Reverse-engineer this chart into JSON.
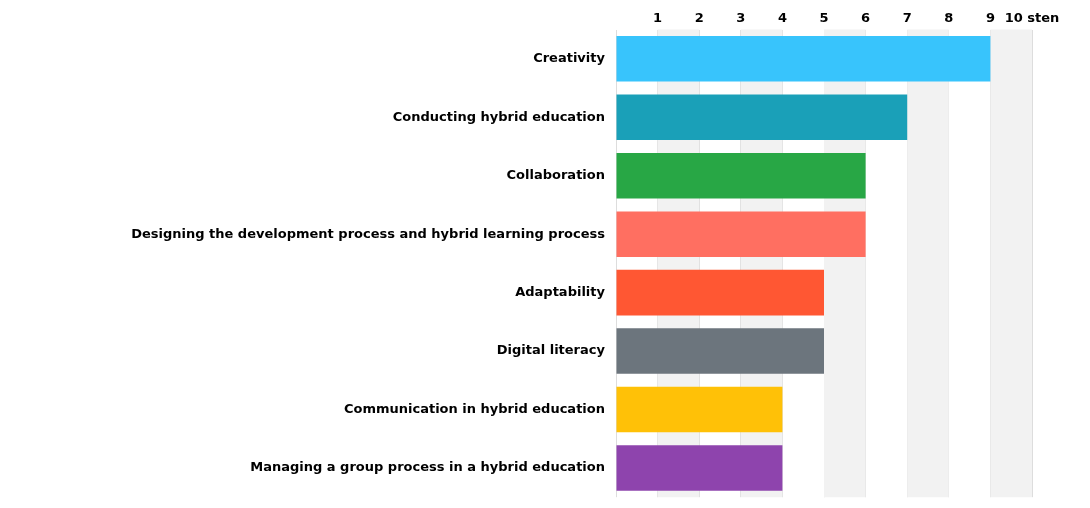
{
  "chart_data": {
    "type": "bar",
    "orientation": "horizontal",
    "categories": [
      "Creativity",
      "Conducting hybrid education",
      "Collaboration",
      "Designing the development process and hybrid learning process",
      "Adaptability",
      "Digital literacy",
      "Communication in hybrid education",
      "Managing a group process in a hybrid education"
    ],
    "values": [
      9,
      7,
      6,
      6,
      5,
      5,
      4,
      4
    ],
    "colors": [
      "#38c4fc",
      "#1aa0b8",
      "#28a745",
      "#ff6f61",
      "#ff5733",
      "#6c757d",
      "#ffc107",
      "#8e44ad"
    ],
    "xlim": [
      0,
      10
    ],
    "xticks": [
      {
        "value": 0,
        "label": null
      },
      1,
      2,
      3,
      4,
      5,
      6,
      7,
      8,
      9,
      {
        "value": 10,
        "label": "10 sten"
      }
    ],
    "grid": "x",
    "bands": [
      {
        "axis": "x",
        "from": 1,
        "to": 2,
        "color": "#f2f2f2"
      },
      {
        "axis": "x",
        "from": 3,
        "to": 4,
        "color": "#f2f2f2"
      },
      {
        "axis": "x",
        "from": 5,
        "to": 6,
        "color": "#f2f2f2"
      },
      {
        "axis": "x",
        "from": 7,
        "to": 8,
        "color": "#f2f2f2"
      },
      {
        "axis": "x",
        "from": 9,
        "to": 10,
        "color": "#f2f2f2"
      }
    ],
    "legend": false
  }
}
